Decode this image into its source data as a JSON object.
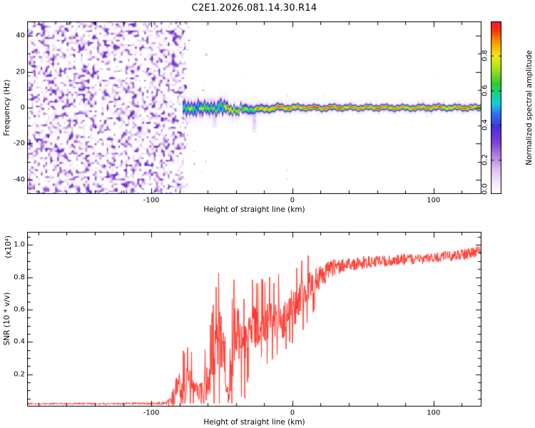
{
  "title": "C2E1.2026.081.14.30.R14",
  "colors": {
    "background": "#ffffff",
    "axis": "#000000",
    "snr_trace": "#ff3328"
  },
  "colormap_stops": [
    [
      0.0,
      "#ffffff"
    ],
    [
      0.06,
      "#f4ebfa"
    ],
    [
      0.14,
      "#ddc2ef"
    ],
    [
      0.22,
      "#b37fe0"
    ],
    [
      0.3,
      "#7d3fd4"
    ],
    [
      0.38,
      "#4a30dd"
    ],
    [
      0.46,
      "#2b6df0"
    ],
    [
      0.52,
      "#19c8e8"
    ],
    [
      0.58,
      "#14d48a"
    ],
    [
      0.64,
      "#2ecc2e"
    ],
    [
      0.72,
      "#9fe01c"
    ],
    [
      0.8,
      "#f2ea12"
    ],
    [
      0.88,
      "#ff9a00"
    ],
    [
      0.95,
      "#ff3300"
    ],
    [
      1.0,
      "#f2164f"
    ]
  ],
  "chart_data": [
    {
      "type": "heatmap",
      "panel": "spectrogram",
      "xlabel": "Height of straight line (km)",
      "ylabel": "Frequency (Hz)",
      "xlim": [
        -188,
        134
      ],
      "ylim": [
        -48,
        48
      ],
      "xticks": {
        "values": [
          -100,
          0,
          100
        ],
        "labels": [
          "-100",
          "0",
          "100"
        ],
        "minor_step": 20
      },
      "yticks": {
        "values": [
          -40,
          -20,
          0,
          20,
          40
        ],
        "labels": [
          "-40",
          "-20",
          "0",
          "20",
          "40"
        ],
        "minor_step": 10
      },
      "colorbar": {
        "label": "Normalized spectral amplitude",
        "range": [
          0,
          1
        ],
        "tick_values": [
          0,
          0.2,
          0.4,
          0.6,
          0.8
        ],
        "tick_labels": [
          "0.0",
          "0.2",
          "0.4",
          "0.6",
          "0.8"
        ]
      },
      "noise_field": {
        "description": "broadband purple speckle noise filling all frequencies left of the signal onset",
        "x_end": -76,
        "value_range": [
          0,
          0.45
        ]
      },
      "signal_band": {
        "description": "narrow residual-frequency signal ridge near 0 Hz appearing at ~-78 km, messy/wide until ~-35 km then a tight red core with rainbow halo out to +134 km",
        "x_start": -78,
        "x": [
          -78,
          -72,
          -66,
          -60,
          -55,
          -50,
          -45,
          -40,
          -35,
          -30,
          -25,
          -20,
          -15,
          -10,
          -5,
          0,
          10,
          20,
          30,
          45,
          60,
          80,
          100,
          120,
          134
        ],
        "center_hz": [
          0.8,
          -1.5,
          0.6,
          -0.8,
          -0.5,
          0.9,
          -1.0,
          -1.3,
          -0.8,
          -1.0,
          -0.6,
          -0.8,
          -0.4,
          0.2,
          -0.2,
          0.0,
          0.1,
          -0.2,
          0.1,
          0.0,
          0.1,
          -0.1,
          0.1,
          0.0,
          0.0
        ],
        "sigma_hz": [
          2.6,
          2.2,
          2.4,
          1.9,
          2.1,
          2.4,
          1.7,
          1.5,
          1.4,
          1.5,
          1.3,
          1.3,
          1.2,
          1.2,
          1.1,
          1.1,
          1.0,
          1.0,
          1.05,
          0.95,
          1.0,
          1.0,
          1.05,
          0.95,
          1.0
        ],
        "peak": [
          0.75,
          0.88,
          0.8,
          0.95,
          0.9,
          0.92,
          1.0,
          0.95,
          1.0,
          1.0,
          1.0,
          1.0,
          1.0,
          1.0,
          1.0,
          1.0,
          1.0,
          1.0,
          1.0,
          1.0,
          1.0,
          1.0,
          1.0,
          1.0,
          1.0
        ],
        "fuzz_halfwidth_hz": [
          9,
          8.5,
          8,
          7.5,
          7,
          7,
          6.5,
          6,
          5.5,
          5.5,
          5,
          5,
          4.5,
          4.5,
          4.2,
          4,
          4,
          4,
          4,
          4,
          4,
          4,
          4,
          4,
          4
        ],
        "tendrils": [
          {
            "x": -55,
            "f_to": -11
          },
          {
            "x": -27,
            "f_to": -14
          }
        ]
      },
      "speckle_density": {
        "x": [
          -76,
          -60,
          -45,
          -20,
          0,
          134
        ],
        "density": [
          0.12,
          0.06,
          0.03,
          0.012,
          0.008,
          0.006
        ]
      }
    },
    {
      "type": "line",
      "panel": "snr",
      "xlabel": "Height of straight line (km)",
      "ylabel": "SNR (10 * v/v)",
      "y_scale_note": "(x10⁴)",
      "xlim": [
        -188,
        134
      ],
      "ylim": [
        0,
        1.08
      ],
      "xticks": {
        "values": [
          -100,
          0,
          100
        ],
        "labels": [
          "-100",
          "0",
          "100"
        ],
        "minor_step": 20
      },
      "yticks": {
        "values": [
          0.2,
          0.4,
          0.6,
          0.8,
          1.0
        ],
        "labels": [
          "0.2",
          "0.4",
          "0.6",
          "0.8",
          "1.0"
        ],
        "minor_step": 0.05
      },
      "series": [
        {
          "name": "SNR",
          "color": "#ff3328",
          "description": "flat near 0 until ~-85 km, intermittent spike clusters -83..-37 km, noisy rise through 0 km, plateau ~0.9-1.0 at right edge (units of 1e4)",
          "x": [
            -188,
            -120,
            -90,
            -86,
            -83,
            -79,
            -76,
            -73,
            -70,
            -67,
            -64,
            -61,
            -58,
            -55,
            -52,
            -49,
            -47,
            -45,
            -43,
            -41,
            -39,
            -37,
            -34,
            -31,
            -28,
            -25,
            -22,
            -19,
            -16,
            -13,
            -10,
            -7,
            -4,
            -1,
            2,
            5,
            8,
            12,
            16,
            20,
            25,
            30,
            36,
            42,
            50,
            60,
            70,
            80,
            90,
            100,
            110,
            120,
            127,
            134
          ],
          "mean": [
            0.018,
            0.018,
            0.02,
            0.03,
            0.09,
            0.16,
            0.12,
            0.18,
            0.1,
            0.07,
            0.1,
            0.14,
            0.2,
            0.32,
            0.42,
            0.35,
            0.1,
            0.06,
            0.28,
            0.45,
            0.5,
            0.4,
            0.35,
            0.48,
            0.52,
            0.47,
            0.55,
            0.5,
            0.56,
            0.52,
            0.58,
            0.5,
            0.6,
            0.63,
            0.6,
            0.66,
            0.7,
            0.74,
            0.78,
            0.8,
            0.84,
            0.86,
            0.87,
            0.88,
            0.89,
            0.9,
            0.9,
            0.91,
            0.91,
            0.92,
            0.93,
            0.94,
            0.95,
            0.97
          ],
          "noise": [
            0.006,
            0.006,
            0.01,
            0.03,
            0.08,
            0.1,
            0.09,
            0.1,
            0.08,
            0.06,
            0.08,
            0.11,
            0.14,
            0.17,
            0.19,
            0.18,
            0.07,
            0.05,
            0.16,
            0.17,
            0.15,
            0.15,
            0.14,
            0.13,
            0.12,
            0.13,
            0.11,
            0.12,
            0.11,
            0.11,
            0.11,
            0.12,
            0.1,
            0.1,
            0.11,
            0.1,
            0.1,
            0.09,
            0.08,
            0.07,
            0.06,
            0.05,
            0.045,
            0.04,
            0.04,
            0.035,
            0.035,
            0.035,
            0.03,
            0.03,
            0.035,
            0.035,
            0.035,
            0.03
          ]
        }
      ]
    }
  ]
}
